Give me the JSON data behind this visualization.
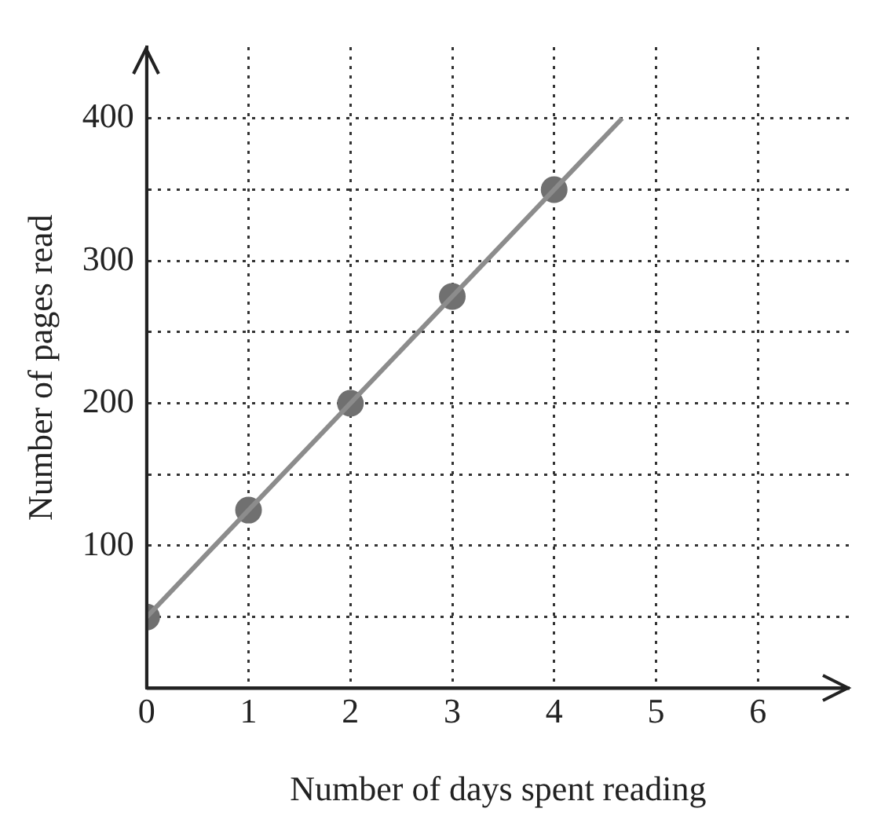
{
  "chart_data": {
    "type": "scatter",
    "xlabel": "Number of days spent reading",
    "ylabel": "Number of pages read",
    "xlim": [
      0,
      6.9
    ],
    "ylim": [
      0,
      450
    ],
    "xticks": [
      0,
      1,
      2,
      3,
      4,
      5,
      6
    ],
    "yticks": [
      {
        "value": 50,
        "label": null
      },
      100,
      {
        "value": 150,
        "label": null
      },
      200,
      {
        "value": 250,
        "label": null
      },
      300,
      {
        "value": 350,
        "label": null
      },
      400
    ],
    "grid": true,
    "legend": false,
    "marker": "circle",
    "series": [
      {
        "type": "line",
        "color": "#8c8c8c",
        "x": [
          0,
          4.667
        ],
        "values": [
          50,
          400
        ],
        "marker": "none",
        "line_style": "solid"
      },
      {
        "color": "#707070",
        "x": [
          0,
          1,
          2,
          3,
          4
        ],
        "values": [
          50,
          125,
          200,
          275,
          350
        ]
      }
    ]
  }
}
